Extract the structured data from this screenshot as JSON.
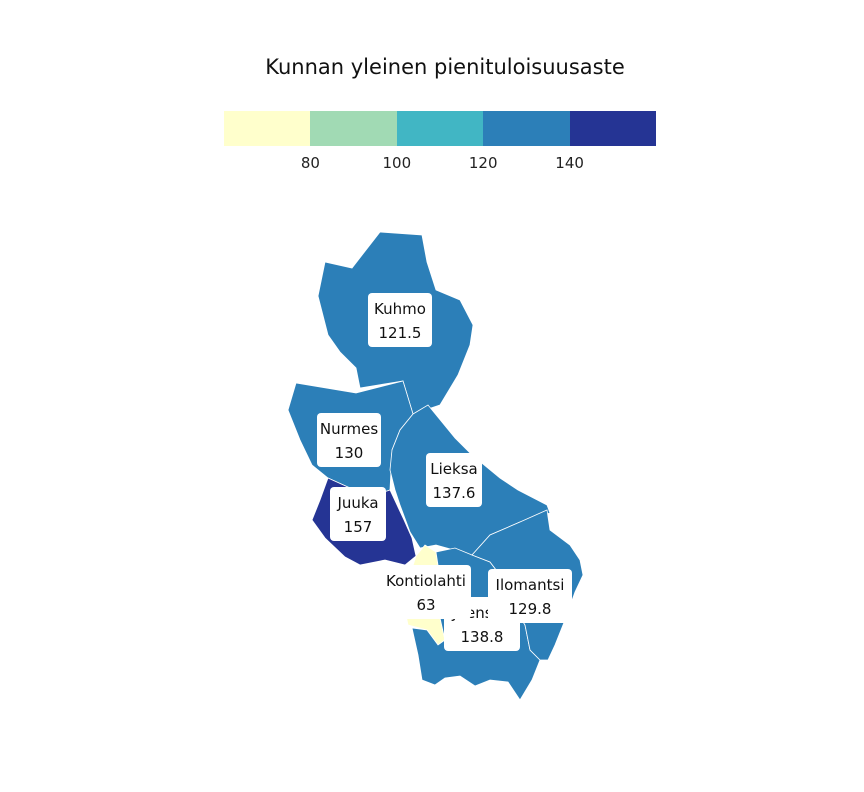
{
  "title": "Kunnan yleinen pienituloisuusaste",
  "legend": {
    "colors": [
      "#ffffcc",
      "#a1dab4",
      "#41b6c4",
      "#2c7fb8",
      "#253494"
    ],
    "ticks": [
      "80",
      "100",
      "120",
      "140"
    ]
  },
  "municipalities": [
    {
      "name": "Kuhmo",
      "value": "121.5",
      "color": "#2c7fb8"
    },
    {
      "name": "Nurmes",
      "value": "130",
      "color": "#2c7fb8"
    },
    {
      "name": "Lieksa",
      "value": "137.6",
      "color": "#2c7fb8"
    },
    {
      "name": "Juuka",
      "value": "157",
      "color": "#253494"
    },
    {
      "name": "Kontiolahti",
      "value": "63",
      "color": "#ffffcc"
    },
    {
      "name": "Joensuu",
      "value": "138.8",
      "color": "#2c7fb8"
    },
    {
      "name": "Ilomantsi",
      "value": "129.8",
      "color": "#2c7fb8"
    }
  ]
}
